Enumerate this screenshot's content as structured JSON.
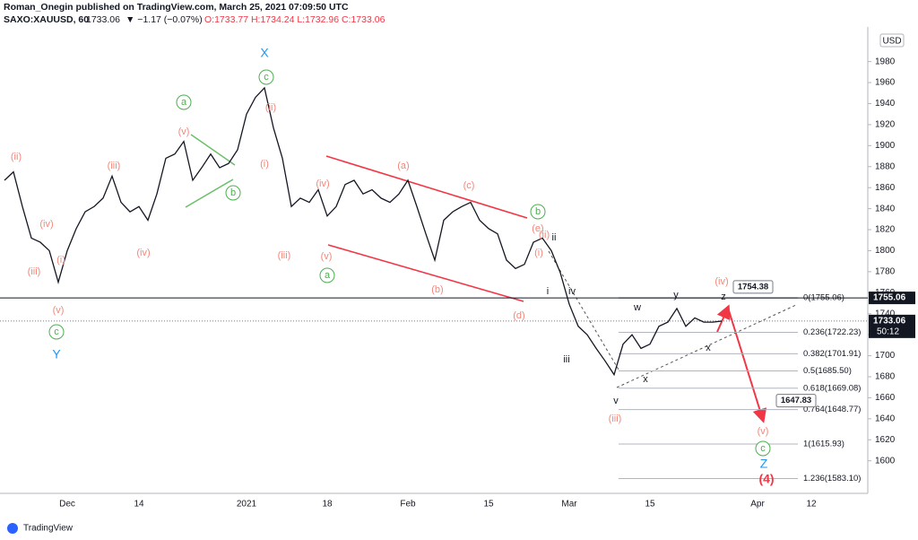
{
  "header": {
    "published": "Roman_Onegin published on TradingView.com, March 25, 2021 07:09:50 UTC",
    "symbol": "SAXO:XAUUSD, 60",
    "last": "1733.06",
    "change": "▼ −1.17 (−0.07%)",
    "ohlc": "O:1733.77 H:1734.24 L:1732.96 C:1733.06"
  },
  "chart_data": {
    "type": "line",
    "currency": "USD",
    "color": "#131722",
    "categories": [
      null,
      null,
      null,
      null,
      null,
      null,
      null,
      "Dec",
      null,
      null,
      null,
      null,
      null,
      null,
      null,
      "14",
      null,
      null,
      null,
      null,
      null,
      null,
      null,
      null,
      null,
      null,
      null,
      "2021",
      null,
      null,
      null,
      null,
      null,
      null,
      null,
      null,
      "18",
      null,
      null,
      null,
      null,
      null,
      null,
      null,
      null,
      "Feb",
      null,
      null,
      null,
      null,
      null,
      null,
      null,
      null,
      "15",
      null,
      null,
      null,
      null,
      null,
      null,
      null,
      null,
      "Mar",
      null,
      null,
      null,
      null,
      null,
      null,
      null,
      null,
      "15",
      null,
      null,
      null,
      null,
      null,
      null,
      null,
      null,
      null,
      null,
      null,
      "Apr",
      null,
      null,
      null,
      null,
      null,
      "12"
    ],
    "values": [
      1867,
      1875,
      1842,
      1812,
      1808,
      1800,
      1770,
      1800,
      1821,
      1837,
      1842,
      1850,
      1871,
      1846,
      1837,
      1842,
      1829,
      1854,
      1888,
      1892,
      1904,
      1867,
      1879,
      1892,
      1879,
      1883,
      1896,
      1930,
      1946,
      1955,
      1917,
      1888,
      1842,
      1850,
      1846,
      1858,
      1833,
      1842,
      1863,
      1867,
      1854,
      1858,
      1850,
      1846,
      1854,
      1867,
      1842,
      1816,
      1791,
      1829,
      1837,
      1842,
      1846,
      1829,
      1821,
      1816,
      1791,
      1783,
      1787,
      1808,
      1812,
      1800,
      1779,
      1749,
      1728,
      1720,
      1707,
      1695,
      1682,
      1711,
      1720,
      1707,
      1711,
      1728,
      1732,
      1745,
      1728,
      1736,
      1732,
      1732,
      1733,
      null,
      null,
      null,
      null,
      null,
      null,
      null,
      null,
      null,
      null
    ],
    "ylim": [
      1569,
      2013
    ],
    "yticks": [
      1600,
      1620,
      1640,
      1660,
      1680,
      1700,
      1720,
      1740,
      1760,
      1780,
      1800,
      1820,
      1840,
      1860,
      1880,
      1900,
      1920,
      1940,
      1960,
      1980
    ],
    "price_tags": [
      {
        "value": 1755.06,
        "label": "1755.06"
      },
      {
        "value": 1733.06,
        "label": "1733.06",
        "timer": "50:12"
      }
    ],
    "fib_levels": [
      {
        "value": 1755.06,
        "label": "0(1755.06)"
      },
      {
        "value": 1722.23,
        "label": "0.236(1722.23)"
      },
      {
        "value": 1701.91,
        "label": "0.382(1701.91)"
      },
      {
        "value": 1685.5,
        "label": "0.5(1685.50)"
      },
      {
        "value": 1669.08,
        "label": "0.618(1669.08)"
      },
      {
        "value": 1648.77,
        "label": "0.764(1648.77)"
      },
      {
        "value": 1615.93,
        "label": "1(1615.93)"
      },
      {
        "value": 1583.1,
        "label": "1.236(1583.10)"
      }
    ],
    "targets": [
      {
        "value": 1754.38,
        "label": "1754.38"
      },
      {
        "value": 1647.83,
        "label": "1647.83"
      }
    ],
    "annotations": [
      "(ii)",
      "(iv)",
      "(iii)",
      "(i)",
      "(v)",
      "c",
      "Y",
      "(iii)",
      "(iv)",
      "a",
      "(v)",
      "b",
      "X",
      "c",
      "(ii)",
      "(i)",
      "(iii)",
      "(iv)",
      "(v)",
      "a",
      "(a)",
      "(b)",
      "(c)",
      "(d)",
      "b",
      "(e)",
      "(ii)",
      "ii",
      "(i)",
      "i",
      "iv",
      "iii",
      "v",
      "x",
      "w",
      "y",
      "x",
      "z",
      "(iv)",
      "(iii)",
      "(v)",
      "c",
      "Z",
      "(4)"
    ]
  },
  "footer": "TradingView"
}
